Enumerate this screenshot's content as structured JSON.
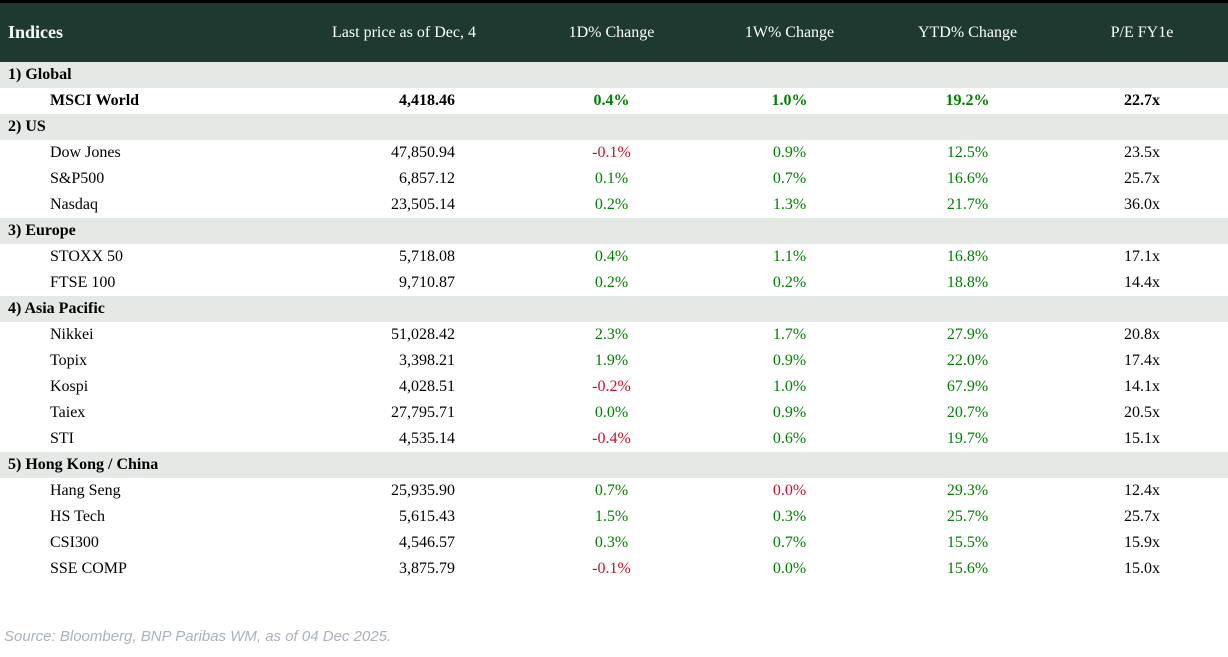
{
  "colors": {
    "positive": "#008000",
    "negative": "#C8102E",
    "header_bg": "#1d3930",
    "section_bg": "#e4e9e5",
    "source_text": "#a9b2ba"
  },
  "table": {
    "columns": [
      "Indices",
      "Last price as of Dec, 4",
      "1D% Change",
      "1W% Change",
      "YTD% Change",
      "P/E FY1e"
    ],
    "sections": [
      {
        "label": "1) Global",
        "rows": [
          {
            "name": "MSCI World",
            "last": "4,418.46",
            "d1": "0.4%",
            "d1_dir": "pos",
            "w1": "1.0%",
            "w1_dir": "pos",
            "ytd": "19.2%",
            "ytd_dir": "pos",
            "pe": "22.7x",
            "bold": true
          }
        ]
      },
      {
        "label": "2) US",
        "rows": [
          {
            "name": "Dow Jones",
            "last": "47,850.94",
            "d1": "-0.1%",
            "d1_dir": "neg",
            "w1": "0.9%",
            "w1_dir": "pos",
            "ytd": "12.5%",
            "ytd_dir": "pos",
            "pe": "23.5x",
            "bold": false
          },
          {
            "name": "S&P500",
            "last": "6,857.12",
            "d1": "0.1%",
            "d1_dir": "pos",
            "w1": "0.7%",
            "w1_dir": "pos",
            "ytd": "16.6%",
            "ytd_dir": "pos",
            "pe": "25.7x",
            "bold": false
          },
          {
            "name": "Nasdaq",
            "last": "23,505.14",
            "d1": "0.2%",
            "d1_dir": "pos",
            "w1": "1.3%",
            "w1_dir": "pos",
            "ytd": "21.7%",
            "ytd_dir": "pos",
            "pe": "36.0x",
            "bold": false
          }
        ]
      },
      {
        "label": "3) Europe",
        "rows": [
          {
            "name": "STOXX 50",
            "last": "5,718.08",
            "d1": "0.4%",
            "d1_dir": "pos",
            "w1": "1.1%",
            "w1_dir": "pos",
            "ytd": "16.8%",
            "ytd_dir": "pos",
            "pe": "17.1x",
            "bold": false
          },
          {
            "name": "FTSE 100",
            "last": "9,710.87",
            "d1": "0.2%",
            "d1_dir": "pos",
            "w1": "0.2%",
            "w1_dir": "pos",
            "ytd": "18.8%",
            "ytd_dir": "pos",
            "pe": "14.4x",
            "bold": false
          }
        ]
      },
      {
        "label": "4) Asia Pacific",
        "rows": [
          {
            "name": "Nikkei",
            "last": "51,028.42",
            "d1": "2.3%",
            "d1_dir": "pos",
            "w1": "1.7%",
            "w1_dir": "pos",
            "ytd": "27.9%",
            "ytd_dir": "pos",
            "pe": "20.8x",
            "bold": false
          },
          {
            "name": "Topix",
            "last": "3,398.21",
            "d1": "1.9%",
            "d1_dir": "pos",
            "w1": "0.9%",
            "w1_dir": "pos",
            "ytd": "22.0%",
            "ytd_dir": "pos",
            "pe": "17.4x",
            "bold": false
          },
          {
            "name": "Kospi",
            "last": "4,028.51",
            "d1": "-0.2%",
            "d1_dir": "neg",
            "w1": "1.0%",
            "w1_dir": "pos",
            "ytd": "67.9%",
            "ytd_dir": "pos",
            "pe": "14.1x",
            "bold": false
          },
          {
            "name": "Taiex",
            "last": "27,795.71",
            "d1": "0.0%",
            "d1_dir": "pos",
            "w1": "0.9%",
            "w1_dir": "pos",
            "ytd": "20.7%",
            "ytd_dir": "pos",
            "pe": "20.5x",
            "bold": false
          },
          {
            "name": "STI",
            "last": "4,535.14",
            "d1": "-0.4%",
            "d1_dir": "neg",
            "w1": "0.6%",
            "w1_dir": "pos",
            "ytd": "19.7%",
            "ytd_dir": "pos",
            "pe": "15.1x",
            "bold": false
          }
        ]
      },
      {
        "label": "5) Hong Kong / China",
        "rows": [
          {
            "name": "Hang Seng",
            "last": "25,935.90",
            "d1": "0.7%",
            "d1_dir": "pos",
            "w1": "0.0%",
            "w1_dir": "neg",
            "ytd": "29.3%",
            "ytd_dir": "pos",
            "pe": "12.4x",
            "bold": false
          },
          {
            "name": "HS Tech",
            "last": "5,615.43",
            "d1": "1.5%",
            "d1_dir": "pos",
            "w1": "0.3%",
            "w1_dir": "pos",
            "ytd": "25.7%",
            "ytd_dir": "pos",
            "pe": "25.7x",
            "bold": false
          },
          {
            "name": "CSI300",
            "last": "4,546.57",
            "d1": "0.3%",
            "d1_dir": "pos",
            "w1": "0.7%",
            "w1_dir": "pos",
            "ytd": "15.5%",
            "ytd_dir": "pos",
            "pe": "15.9x",
            "bold": false
          },
          {
            "name": "SSE COMP",
            "last": "3,875.79",
            "d1": "-0.1%",
            "d1_dir": "neg",
            "w1": "0.0%",
            "w1_dir": "pos",
            "ytd": "15.6%",
            "ytd_dir": "pos",
            "pe": "15.0x",
            "bold": false
          }
        ]
      }
    ]
  },
  "footer": {
    "source": "Source: Bloomberg, BNP Paribas WM, as of 04 Dec 2025."
  }
}
